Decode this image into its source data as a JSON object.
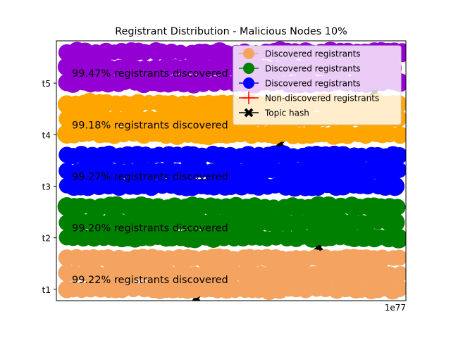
{
  "chart_data": {
    "type": "scatter",
    "title": "Registrant Distribution - Malicious Nodes 10%",
    "x_offset_label": "1e77",
    "y_tick_labels": [
      "t1",
      "t2",
      "t3",
      "t4",
      "t5"
    ],
    "ylim": [
      0.78,
      5.82
    ],
    "grid": false,
    "legend_position": "top-right",
    "legend": [
      {
        "label": "Discovered registrants",
        "color": "#f4a460",
        "marker": "circle"
      },
      {
        "label": "Discovered registrants",
        "color": "#008000",
        "marker": "circle"
      },
      {
        "label": "Discovered registrants",
        "color": "#0000ff",
        "marker": "circle"
      },
      {
        "label": "Non-discovered registrants",
        "color": "#ff0000",
        "marker": "plus"
      },
      {
        "label": "Topic hash",
        "color": "#000000",
        "marker": "X"
      }
    ],
    "series": [
      {
        "topic": "t1",
        "y_levels": [
          1.0,
          1.3,
          1.6
        ],
        "color": "#f4a460",
        "annotation": "99.22% registrants discovered"
      },
      {
        "topic": "t2",
        "y_levels": [
          2.0,
          2.3,
          2.6
        ],
        "color": "#008000",
        "annotation": "99.20% registrants discovered"
      },
      {
        "topic": "t3",
        "y_levels": [
          3.0,
          3.3,
          3.6
        ],
        "color": "#0000ff",
        "annotation": "99.27% registrants discovered"
      },
      {
        "topic": "t4",
        "y_levels": [
          4.0,
          4.3,
          4.6
        ],
        "color": "#ffa500",
        "annotation": "99.18% registrants discovered"
      },
      {
        "topic": "t5",
        "y_levels": [
          5.0,
          5.3,
          5.6
        ],
        "color": "#9400d3",
        "annotation": "99.47% registrants discovered"
      }
    ],
    "topic_hash_markers": [
      {
        "topic": "t1",
        "x_fraction": 0.4
      },
      {
        "topic": "t2",
        "x_fraction": 0.75
      },
      {
        "topic": "t4",
        "x_fraction": 0.64
      },
      {
        "topic": "t5",
        "x_fraction": 0.91
      }
    ]
  }
}
